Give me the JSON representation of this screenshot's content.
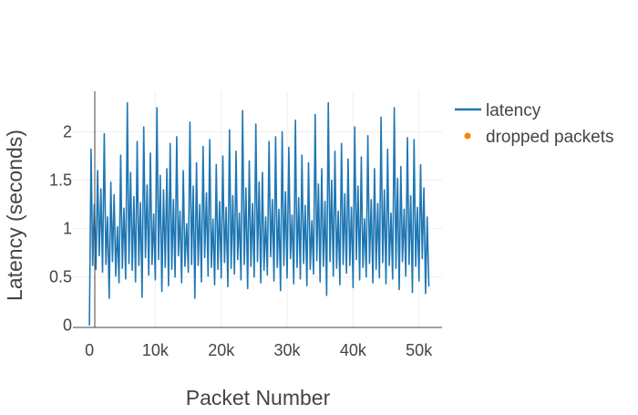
{
  "chart_data": {
    "type": "line",
    "title": "",
    "xlabel": "Packet Number",
    "ylabel": "Latency (seconds)",
    "xlim": [
      -2500,
      53500
    ],
    "ylim": [
      -0.05,
      2.42
    ],
    "x_ticks": [
      0,
      10000,
      20000,
      30000,
      40000,
      50000
    ],
    "x_tick_labels": [
      "0",
      "10k",
      "20k",
      "30k",
      "40k",
      "50k"
    ],
    "y_ticks": [
      0,
      0.5,
      1,
      1.5,
      2
    ],
    "y_tick_labels": [
      "0",
      "0.5",
      "1",
      "1.5",
      "2"
    ],
    "grid": true,
    "legend_position": "top-right",
    "series": [
      {
        "name": "latency",
        "color": "#1f77b4",
        "mode": "lines",
        "x_start": 0,
        "x_step": 250,
        "values": [
          0.0,
          1.82,
          0.62,
          1.25,
          0.58,
          1.6,
          0.72,
          1.41,
          0.55,
          1.98,
          0.63,
          1.12,
          0.28,
          1.48,
          0.66,
          1.35,
          0.51,
          1.02,
          0.44,
          1.76,
          0.59,
          1.21,
          0.48,
          2.3,
          0.64,
          1.58,
          0.57,
          1.33,
          0.45,
          1.9,
          0.62,
          1.27,
          0.29,
          2.05,
          0.7,
          1.45,
          0.52,
          1.78,
          0.63,
          1.15,
          0.47,
          2.25,
          0.68,
          1.55,
          0.35,
          1.4,
          0.6,
          1.62,
          0.41,
          1.88,
          0.58,
          1.3,
          0.5,
          1.95,
          0.72,
          1.18,
          0.44,
          1.6,
          0.61,
          1.05,
          0.55,
          2.1,
          0.63,
          1.44,
          0.28,
          1.68,
          0.62,
          1.25,
          0.45,
          1.85,
          0.7,
          1.37,
          0.51,
          1.92,
          0.6,
          1.1,
          0.42,
          1.66,
          0.58,
          1.28,
          0.49,
          1.75,
          0.65,
          1.22,
          0.4,
          2.02,
          0.59,
          1.34,
          0.53,
          1.8,
          0.68,
          1.16,
          0.47,
          2.22,
          0.63,
          1.42,
          0.38,
          1.7,
          0.61,
          1.26,
          0.5,
          2.08,
          0.66,
          1.48,
          0.44,
          1.58,
          0.57,
          1.12,
          0.52,
          1.9,
          0.71,
          1.3,
          0.46,
          1.95,
          0.6,
          1.2,
          0.36,
          2.0,
          0.62,
          1.38,
          0.49,
          1.84,
          0.69,
          1.14,
          0.43,
          2.12,
          0.6,
          1.32,
          0.48,
          1.76,
          0.64,
          1.24,
          0.41,
          1.68,
          0.58,
          1.08,
          0.53,
          2.18,
          0.67,
          1.46,
          0.45,
          1.62,
          0.61,
          1.28,
          0.31,
          2.3,
          0.66,
          1.5,
          0.51,
          1.8,
          0.59,
          1.18,
          0.42,
          1.88,
          0.63,
          1.36,
          0.54,
          1.72,
          0.62,
          1.22,
          0.39,
          2.05,
          0.68,
          1.44,
          0.47,
          1.74,
          0.6,
          1.1,
          0.5,
          1.96,
          0.64,
          1.3,
          0.44,
          1.62,
          0.58,
          1.26,
          0.49,
          2.15,
          0.65,
          1.4,
          0.43,
          1.82,
          0.62,
          1.16,
          0.48,
          2.25,
          0.59,
          1.52,
          0.37,
          1.64,
          0.66,
          1.2,
          0.51,
          1.94,
          0.63,
          1.34,
          0.34,
          1.92,
          0.61,
          1.22,
          0.46,
          1.66,
          0.69,
          1.42,
          0.33,
          1.12,
          0.4
        ]
      },
      {
        "name": "dropped packets",
        "color": "#ff7f0e",
        "mode": "markers",
        "x": [],
        "y": []
      }
    ]
  }
}
